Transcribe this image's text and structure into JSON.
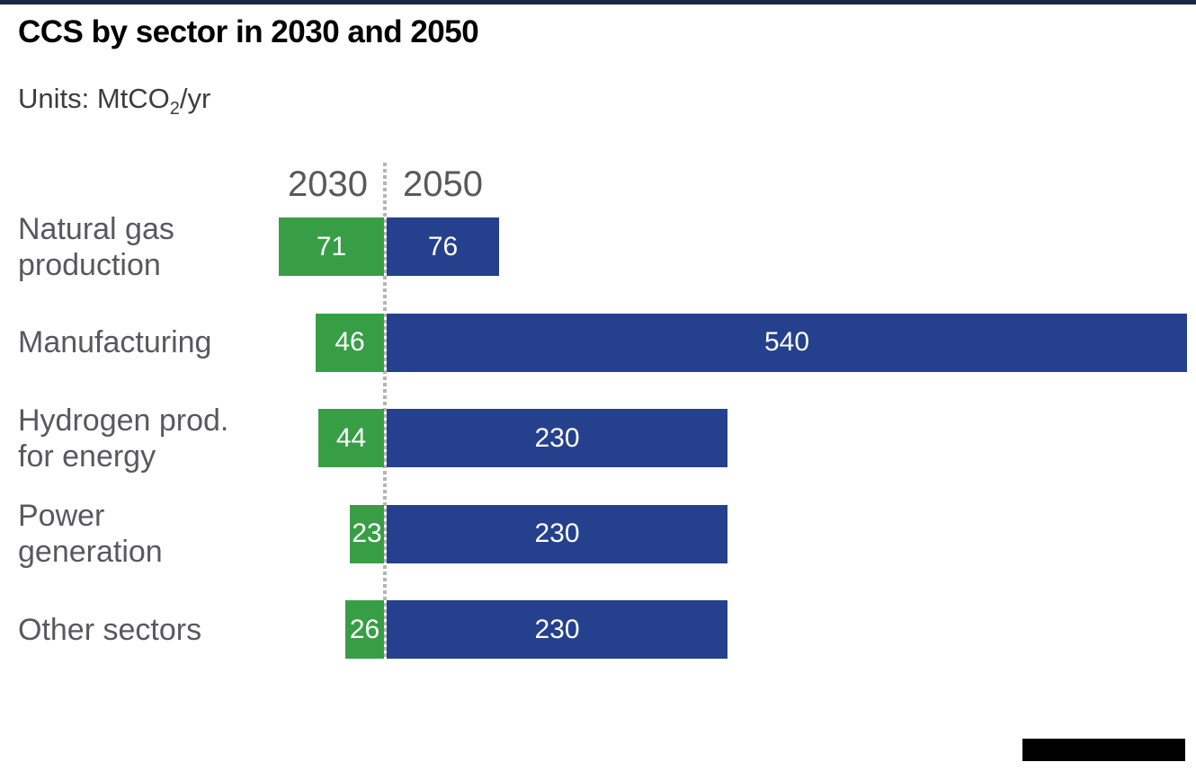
{
  "page": {
    "title": "CCS by sector in 2030 and 2050",
    "units": {
      "prefix": "Units: MtCO",
      "sub": "2",
      "suffix": "/yr"
    }
  },
  "chart_data": {
    "type": "bar",
    "orientation": "horizontal-diverging",
    "title": "CCS by sector in 2030 and 2050",
    "units": "MtCO2/yr",
    "categories": [
      "Natural gas production",
      "Manufacturing",
      "Hydrogen prod. for energy",
      "Power generation",
      "Other sectors"
    ],
    "label_lines": [
      [
        "Natural gas",
        "production"
      ],
      [
        "Manufacturing"
      ],
      [
        "Hydrogen prod.",
        "for energy"
      ],
      [
        "Power",
        "generation"
      ],
      [
        "Other sectors"
      ]
    ],
    "series": [
      {
        "name": "2030",
        "color": "#389e46",
        "values": [
          71,
          46,
          44,
          23,
          26
        ]
      },
      {
        "name": "2050",
        "color": "#25418d",
        "values": [
          76,
          540,
          230,
          230,
          230
        ]
      }
    ],
    "value_labels_shown": true,
    "axis_style": "center-diverging-dotted",
    "max_value": 540
  },
  "colors": {
    "top_bar": "#1b2546",
    "title_text": "#000000",
    "subtitle_text": "#3d3d3d",
    "column_header_text": "#595959",
    "category_text": "#58595b",
    "axis_dotted_line": "#b5b5b5",
    "bar_value_text": "#ffffff",
    "logo_box": "#000000"
  }
}
